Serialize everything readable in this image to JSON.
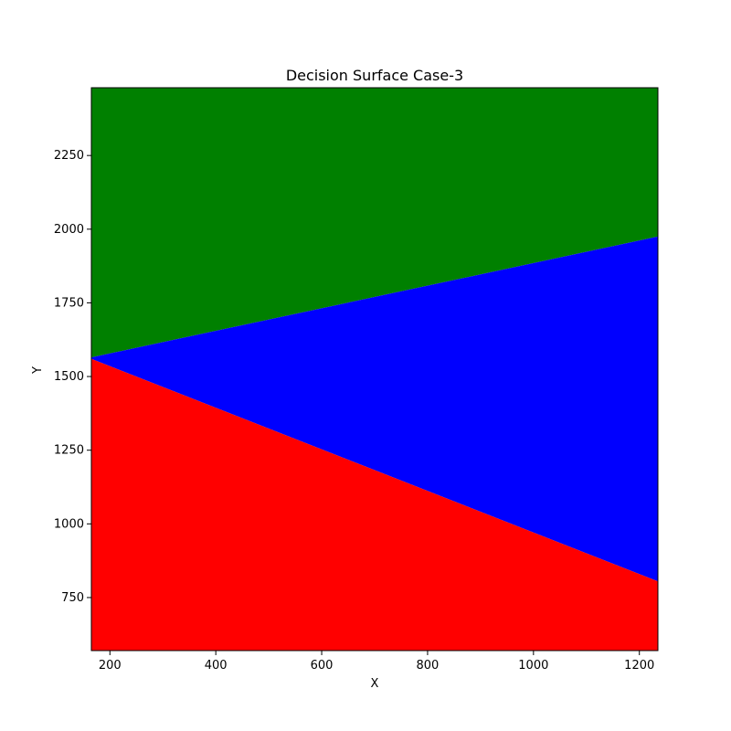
{
  "chart_data": {
    "type": "area",
    "title": "Decision Surface Case-3",
    "xlabel": "X",
    "ylabel": "Y",
    "xlim": [
      165,
      1235
    ],
    "ylim": [
      570,
      2480
    ],
    "xticks": [
      200,
      400,
      600,
      800,
      1000,
      1200
    ],
    "yticks": [
      750,
      1000,
      1250,
      1500,
      1750,
      2000,
      2250
    ],
    "grid": false,
    "regions": [
      {
        "color": "#008000",
        "description": "upper region",
        "lower_boundary": "green_blue"
      },
      {
        "color": "#0000ff",
        "description": "middle wedge",
        "upper_boundary": "green_blue",
        "lower_boundary": "blue_red"
      },
      {
        "color": "#ff0000",
        "description": "lower region",
        "upper_boundary": "blue_red"
      }
    ],
    "boundaries": {
      "green_blue": {
        "x": [
          165,
          1235
        ],
        "y": [
          1565,
          1975
        ]
      },
      "blue_red": {
        "x": [
          165,
          1235
        ],
        "y": [
          1560,
          805
        ]
      }
    }
  }
}
